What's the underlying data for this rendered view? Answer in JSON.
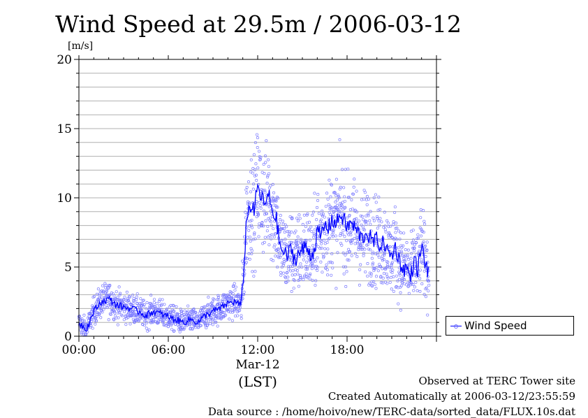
{
  "chart_data": {
    "type": "scatter",
    "title": "Wind Speed at 29.5m / 2006-03-12",
    "ylabel": "[m/s]",
    "xlabel": "(LST)",
    "ylim": [
      0,
      20
    ],
    "y_ticks": [
      0,
      5,
      10,
      15,
      20
    ],
    "xlim_hours": [
      0,
      24
    ],
    "x_ticks": [
      {
        "hour": 0,
        "label": "00:00"
      },
      {
        "hour": 6,
        "label": "06:00"
      },
      {
        "hour": 12,
        "label": "12:00",
        "sub_label": "Mar-12"
      },
      {
        "hour": 18,
        "label": "18:00"
      }
    ],
    "grid": true,
    "legend": {
      "position": "right",
      "entries": [
        "Wind Speed"
      ]
    },
    "colors": {
      "line": "#0000ff",
      "points": "#7b7bff"
    },
    "series": [
      {
        "name": "Wind Speed",
        "style": "line with scattered points",
        "x_hours": [
          0,
          0.5,
          1,
          1.5,
          2,
          2.5,
          3,
          3.5,
          4,
          4.5,
          5,
          5.5,
          6,
          6.5,
          7,
          7.5,
          8,
          8.5,
          9,
          9.5,
          10,
          10.5,
          10.9,
          11,
          11.25,
          11.5,
          11.75,
          12,
          12.25,
          12.5,
          12.75,
          13,
          13.25,
          13.5,
          13.75,
          14,
          14.25,
          14.5,
          14.75,
          15,
          15.25,
          15.5,
          15.75,
          16,
          16.25,
          16.5,
          16.75,
          17,
          17.25,
          17.5,
          17.75,
          18,
          18.25,
          18.5,
          18.75,
          19,
          19.25,
          19.5,
          19.75,
          20,
          20.25,
          20.5,
          20.75,
          21,
          21.25,
          21.5,
          21.75,
          22,
          22.25,
          22.5,
          22.75,
          23,
          23.25,
          23.5
        ],
        "values": [
          1.0,
          0.5,
          1.8,
          2.5,
          2.7,
          2.3,
          2.1,
          2.0,
          1.8,
          1.5,
          1.8,
          1.6,
          1.4,
          1.2,
          1.0,
          1.2,
          1.0,
          1.5,
          1.8,
          2.0,
          2.4,
          2.5,
          2.2,
          3.5,
          8.5,
          9.5,
          9.0,
          10.8,
          10.0,
          9.5,
          10.2,
          9.0,
          8.5,
          6.5,
          6.0,
          5.8,
          6.3,
          5.5,
          6.0,
          6.2,
          6.5,
          6.0,
          6.0,
          7.5,
          7.2,
          8.0,
          7.8,
          8.5,
          8.0,
          8.8,
          8.5,
          7.8,
          8.2,
          7.8,
          7.5,
          7.0,
          7.5,
          7.2,
          6.8,
          7.0,
          6.5,
          6.8,
          6.0,
          5.8,
          6.5,
          5.5,
          4.8,
          5.0,
          4.2,
          5.5,
          4.8,
          6.5,
          5.2,
          4.5
        ]
      }
    ]
  },
  "footer": {
    "line1": "Observed at TERC Tower site",
    "line2": "Created Automatically at 2006-03-12/23:55:59",
    "line3": "Data source : /home/hoivo/new/TERC-data/sorted_data/FLUX.10s.dat"
  }
}
